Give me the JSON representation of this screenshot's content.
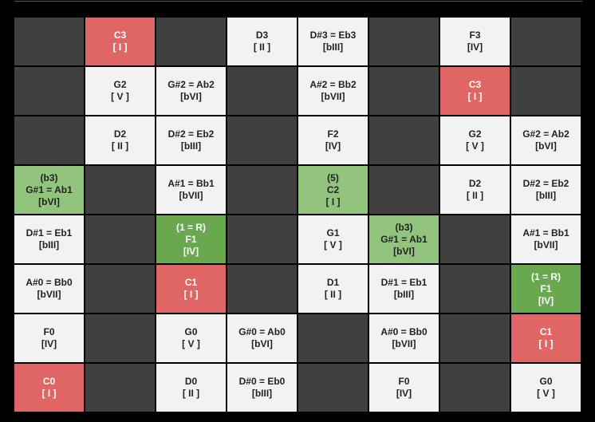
{
  "grid": {
    "rows": [
      [
        {
          "kind": "empty"
        },
        {
          "kind": "root",
          "lines": [
            "C3",
            "[ I ]"
          ]
        },
        {
          "kind": "empty"
        },
        {
          "kind": "note",
          "lines": [
            "D3",
            "[ II ]"
          ]
        },
        {
          "kind": "note",
          "lines": [
            "D#3 = Eb3",
            "[bIII]"
          ]
        },
        {
          "kind": "empty"
        },
        {
          "kind": "note",
          "lines": [
            "F3",
            "[IV]"
          ]
        },
        {
          "kind": "empty"
        }
      ],
      [
        {
          "kind": "empty"
        },
        {
          "kind": "note",
          "lines": [
            "G2",
            "[ V ]"
          ]
        },
        {
          "kind": "note",
          "lines": [
            "G#2 = Ab2",
            "[bVI]"
          ]
        },
        {
          "kind": "empty"
        },
        {
          "kind": "note",
          "lines": [
            "A#2 = Bb2",
            "[bVII]"
          ]
        },
        {
          "kind": "empty"
        },
        {
          "kind": "root",
          "lines": [
            "C3",
            "[ I ]"
          ]
        },
        {
          "kind": "empty"
        }
      ],
      [
        {
          "kind": "empty"
        },
        {
          "kind": "note",
          "lines": [
            "D2",
            "[ II ]"
          ]
        },
        {
          "kind": "note",
          "lines": [
            "D#2 = Eb2",
            "[bIII]"
          ]
        },
        {
          "kind": "empty"
        },
        {
          "kind": "note",
          "lines": [
            "F2",
            "[IV]"
          ]
        },
        {
          "kind": "empty"
        },
        {
          "kind": "note",
          "lines": [
            "G2",
            "[ V ]"
          ]
        },
        {
          "kind": "note",
          "lines": [
            "G#2 = Ab2",
            "[bVI]"
          ]
        }
      ],
      [
        {
          "kind": "chord",
          "lines": [
            "(b3)",
            "G#1 = Ab1",
            "[bVI]"
          ]
        },
        {
          "kind": "empty"
        },
        {
          "kind": "note",
          "lines": [
            "A#1 = Bb1",
            "[bVII]"
          ]
        },
        {
          "kind": "empty"
        },
        {
          "kind": "chord",
          "lines": [
            "(5)",
            "C2",
            "[ I ]"
          ]
        },
        {
          "kind": "empty"
        },
        {
          "kind": "note",
          "lines": [
            "D2",
            "[ II ]"
          ]
        },
        {
          "kind": "note",
          "lines": [
            "D#2 = Eb2",
            "[bIII]"
          ]
        }
      ],
      [
        {
          "kind": "note",
          "lines": [
            "D#1 = Eb1",
            "[bIII]"
          ]
        },
        {
          "kind": "empty"
        },
        {
          "kind": "chord-root",
          "lines": [
            "(1 = R)",
            "F1",
            "[IV]"
          ]
        },
        {
          "kind": "empty"
        },
        {
          "kind": "note",
          "lines": [
            "G1",
            "[ V ]"
          ]
        },
        {
          "kind": "chord",
          "lines": [
            "(b3)",
            "G#1 = Ab1",
            "[bVI]"
          ]
        },
        {
          "kind": "empty"
        },
        {
          "kind": "note",
          "lines": [
            "A#1 = Bb1",
            "[bVII]"
          ]
        }
      ],
      [
        {
          "kind": "note",
          "lines": [
            "A#0 = Bb0",
            "[bVII]"
          ]
        },
        {
          "kind": "empty"
        },
        {
          "kind": "root",
          "lines": [
            "C1",
            "[ I ]"
          ]
        },
        {
          "kind": "empty"
        },
        {
          "kind": "note",
          "lines": [
            "D1",
            "[ II ]"
          ]
        },
        {
          "kind": "note",
          "lines": [
            "D#1 = Eb1",
            "[bIII]"
          ]
        },
        {
          "kind": "empty"
        },
        {
          "kind": "chord-root",
          "lines": [
            "(1 = R)",
            "F1",
            "[IV]"
          ]
        }
      ],
      [
        {
          "kind": "note",
          "lines": [
            "F0",
            "[IV]"
          ]
        },
        {
          "kind": "empty"
        },
        {
          "kind": "note",
          "lines": [
            "G0",
            "[ V ]"
          ]
        },
        {
          "kind": "note",
          "lines": [
            "G#0 = Ab0",
            "[bVI]"
          ]
        },
        {
          "kind": "empty"
        },
        {
          "kind": "note",
          "lines": [
            "A#0 = Bb0",
            "[bVII]"
          ]
        },
        {
          "kind": "empty"
        },
        {
          "kind": "root",
          "lines": [
            "C1",
            "[ I ]"
          ]
        }
      ],
      [
        {
          "kind": "root",
          "lines": [
            "C0",
            "[ I ]"
          ]
        },
        {
          "kind": "empty"
        },
        {
          "kind": "note",
          "lines": [
            "D0",
            "[ II ]"
          ]
        },
        {
          "kind": "note",
          "lines": [
            "D#0 = Eb0",
            "[bIII]"
          ]
        },
        {
          "kind": "empty"
        },
        {
          "kind": "note",
          "lines": [
            "F0",
            "[IV]"
          ]
        },
        {
          "kind": "empty"
        },
        {
          "kind": "note",
          "lines": [
            "G0",
            "[ V ]"
          ]
        }
      ]
    ]
  }
}
